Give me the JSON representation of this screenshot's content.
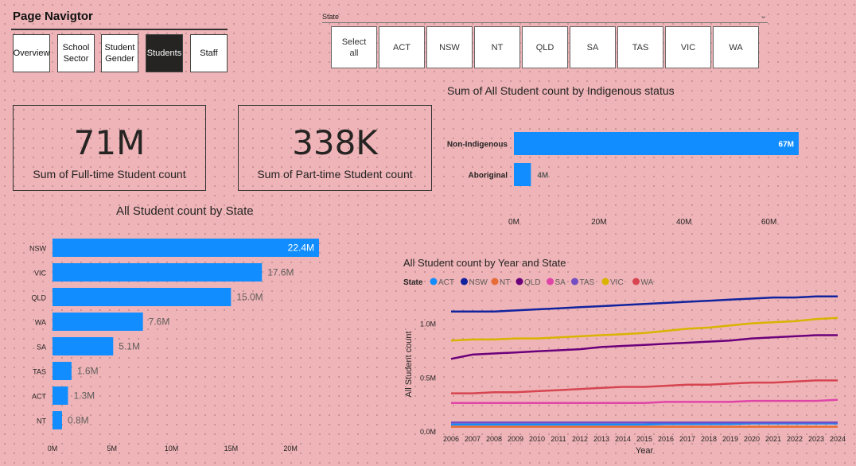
{
  "nav": {
    "title": "Page Navigtor",
    "buttons": [
      "Overview",
      "School\nSector",
      "Student\nGender",
      "Students",
      "Staff"
    ],
    "active": "Students"
  },
  "slicer": {
    "title": "State",
    "options": [
      "Select\nall",
      "ACT",
      "NSW",
      "NT",
      "QLD",
      "SA",
      "TAS",
      "VIC",
      "WA"
    ]
  },
  "cards": {
    "fulltime": {
      "value": "71M",
      "label": "Sum of Full-time Student count"
    },
    "parttime": {
      "value": "338K",
      "label": "Sum of Part-time Student count"
    }
  },
  "colors": {
    "bar": "#118dff",
    "ACT": "#118dff",
    "NSW": "#12239e",
    "NT": "#e66c37",
    "QLD": "#6b007b",
    "SA": "#e044a7",
    "TAS": "#744ec2",
    "VIC": "#d9b300",
    "WA": "#d64550"
  },
  "chart_data": [
    {
      "type": "bar",
      "title": "Sum of All Student count by Indigenous status",
      "orientation": "horizontal",
      "categories": [
        "Non-Indigenous",
        "Aboriginal"
      ],
      "values": [
        67,
        4
      ],
      "labels": [
        "67M",
        "4M"
      ],
      "unit": "M",
      "xlim": [
        0,
        70
      ],
      "ticks": [
        0,
        20,
        40,
        60
      ],
      "tick_labels": [
        "0M",
        "20M",
        "40M",
        "60M"
      ]
    },
    {
      "type": "bar",
      "title": "All Student count by State",
      "orientation": "horizontal",
      "categories": [
        "NSW",
        "VIC",
        "QLD",
        "WA",
        "SA",
        "TAS",
        "ACT",
        "NT"
      ],
      "values": [
        22.4,
        17.6,
        15.0,
        7.6,
        5.1,
        1.6,
        1.3,
        0.8
      ],
      "labels": [
        "22.4M",
        "17.6M",
        "15.0M",
        "7.6M",
        "5.1M",
        "1.6M",
        "1.3M",
        "0.8M"
      ],
      "unit": "M",
      "xlim": [
        0,
        22.4
      ],
      "ticks": [
        0,
        5,
        10,
        15,
        20
      ],
      "tick_labels": [
        "0M",
        "5M",
        "10M",
        "15M",
        "20M"
      ]
    },
    {
      "type": "line",
      "title": "All Student count by Year and State",
      "legend_title": "State",
      "xlabel": "Year",
      "ylabel": "All Student count",
      "x": [
        2006,
        2007,
        2008,
        2009,
        2010,
        2011,
        2012,
        2013,
        2014,
        2015,
        2016,
        2017,
        2018,
        2019,
        2020,
        2021,
        2022,
        2023,
        2024
      ],
      "ylim": [
        0,
        1.3
      ],
      "y_ticks": [
        0,
        0.5,
        1.0
      ],
      "y_tick_labels": [
        "0.0M",
        "0.5M",
        "1.0M"
      ],
      "series": [
        {
          "name": "ACT",
          "values": [
            0.06,
            0.06,
            0.06,
            0.06,
            0.06,
            0.06,
            0.06,
            0.06,
            0.06,
            0.06,
            0.065,
            0.065,
            0.065,
            0.065,
            0.07,
            0.07,
            0.07,
            0.07,
            0.07
          ]
        },
        {
          "name": "NSW",
          "values": [
            1.11,
            1.11,
            1.11,
            1.12,
            1.13,
            1.14,
            1.15,
            1.16,
            1.17,
            1.18,
            1.19,
            1.2,
            1.21,
            1.22,
            1.23,
            1.24,
            1.24,
            1.25,
            1.25
          ]
        },
        {
          "name": "NT",
          "values": [
            0.04,
            0.04,
            0.04,
            0.04,
            0.04,
            0.04,
            0.04,
            0.04,
            0.04,
            0.04,
            0.04,
            0.04,
            0.04,
            0.04,
            0.04,
            0.04,
            0.04,
            0.04,
            0.04
          ]
        },
        {
          "name": "QLD",
          "values": [
            0.67,
            0.71,
            0.72,
            0.73,
            0.74,
            0.75,
            0.76,
            0.78,
            0.79,
            0.8,
            0.81,
            0.82,
            0.83,
            0.84,
            0.86,
            0.87,
            0.88,
            0.89,
            0.89
          ]
        },
        {
          "name": "SA",
          "values": [
            0.26,
            0.26,
            0.26,
            0.26,
            0.26,
            0.26,
            0.26,
            0.26,
            0.26,
            0.26,
            0.27,
            0.27,
            0.27,
            0.27,
            0.28,
            0.28,
            0.28,
            0.28,
            0.29
          ]
        },
        {
          "name": "TAS",
          "values": [
            0.08,
            0.08,
            0.08,
            0.08,
            0.08,
            0.08,
            0.08,
            0.08,
            0.08,
            0.08,
            0.08,
            0.08,
            0.08,
            0.08,
            0.08,
            0.08,
            0.08,
            0.08,
            0.08
          ]
        },
        {
          "name": "VIC",
          "values": [
            0.84,
            0.85,
            0.85,
            0.86,
            0.86,
            0.87,
            0.88,
            0.89,
            0.9,
            0.91,
            0.93,
            0.95,
            0.96,
            0.98,
            1.0,
            1.01,
            1.02,
            1.04,
            1.05
          ]
        },
        {
          "name": "WA",
          "values": [
            0.35,
            0.35,
            0.36,
            0.36,
            0.37,
            0.38,
            0.39,
            0.4,
            0.41,
            0.41,
            0.42,
            0.43,
            0.43,
            0.44,
            0.45,
            0.45,
            0.46,
            0.47,
            0.47
          ]
        }
      ]
    }
  ]
}
